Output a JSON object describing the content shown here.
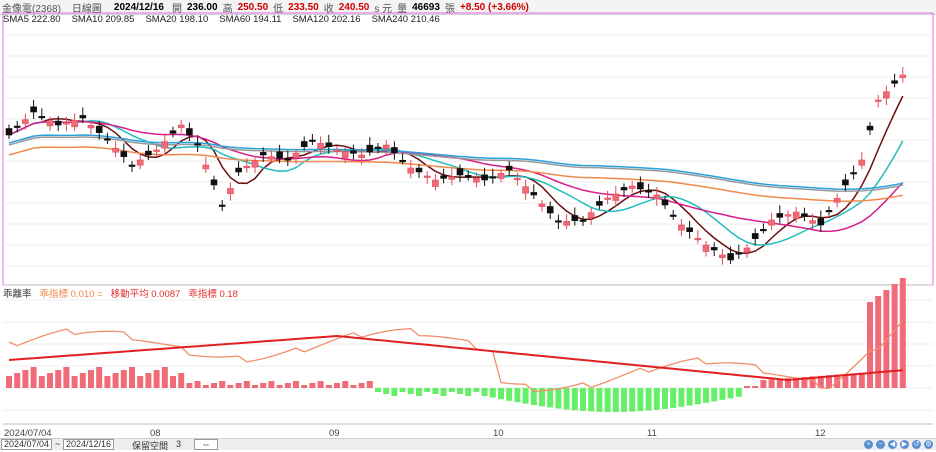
{
  "header": {
    "stock": "金像電(2368)",
    "period": "日線圖",
    "date": "2024/12/16",
    "open_label": "開",
    "open": "236.00",
    "high_label": "高",
    "high": "250.50",
    "low_label": "低",
    "low": "233.50",
    "close_label": "收",
    "close": "240.50",
    "unit": "s 元",
    "volume_label": "量",
    "volume": "46693",
    "volume_unit": "張",
    "change": "+8.50 (+3.66%)"
  },
  "moving_averages": [
    {
      "label": "SMA5 222.80",
      "color": "#6b0f0f"
    },
    {
      "label": "SMA10 209.85",
      "color": "#1fbdbd"
    },
    {
      "label": "SMA20 198.10",
      "color": "#d61f8a"
    },
    {
      "label": "SMA60 194.11",
      "color": "#f08a4b"
    },
    {
      "label": "SMA120 202.16",
      "color": "#999999"
    },
    {
      "label": "SMA240 210.46",
      "color": "#2aa0dc"
    }
  ],
  "indicator": {
    "name": "乖離率",
    "items": [
      {
        "label": "乖指標 0.010 =",
        "color": "#f08a4b"
      },
      {
        "label": "移動平均 0.0087",
        "color": "#e03030"
      },
      {
        "label": "乖指標 0.18",
        "color": "#e03030"
      }
    ]
  },
  "x_axis": {
    "start": "2024/07/04",
    "ticks": [
      "08",
      "09",
      "10",
      "11",
      "12"
    ]
  },
  "bottom": {
    "from_date": "2024/07/04",
    "tilde": "~",
    "to_date": "2024/12/16",
    "keep_label": "保留空間",
    "keep_value": "3"
  },
  "colors": {
    "up": "#f06b78",
    "down": "#111111",
    "hist_pos": "#f06b78",
    "hist_neg": "#66ee66",
    "frame": "#e06ae0"
  }
}
